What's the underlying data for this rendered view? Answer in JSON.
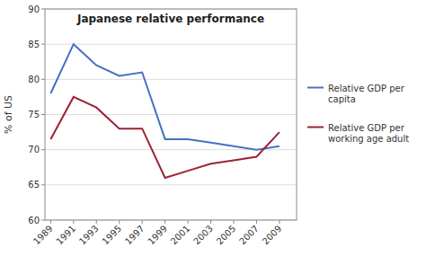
{
  "chart_data": {
    "type": "line",
    "title": "Japanese relative performance",
    "y_label": "% of US",
    "x": [
      1989,
      1991,
      1993,
      1995,
      1997,
      1999,
      2001,
      2003,
      2005,
      2007,
      2009
    ],
    "xlim": [
      1988.5,
      2010.5
    ],
    "xticks": [
      1989,
      1991,
      1993,
      1995,
      1997,
      1999,
      2001,
      2003,
      2005,
      2007,
      2009
    ],
    "ylim": [
      60,
      90
    ],
    "yticks": [
      60,
      65,
      70,
      75,
      80,
      85,
      90
    ],
    "grid": true,
    "legend": "right",
    "series": [
      {
        "name": "Relative GDP per\ncapita",
        "color": "#4472C4",
        "values": [
          78,
          85,
          82,
          80.5,
          81,
          71.5,
          71.5,
          71,
          70.5,
          70,
          70.5
        ]
      },
      {
        "name": "Relative GDP per\nworking age adult",
        "color": "#9B2335",
        "values": [
          71.5,
          77.5,
          76,
          73,
          73,
          66,
          67,
          68,
          68.5,
          69,
          72.5
        ]
      }
    ]
  }
}
